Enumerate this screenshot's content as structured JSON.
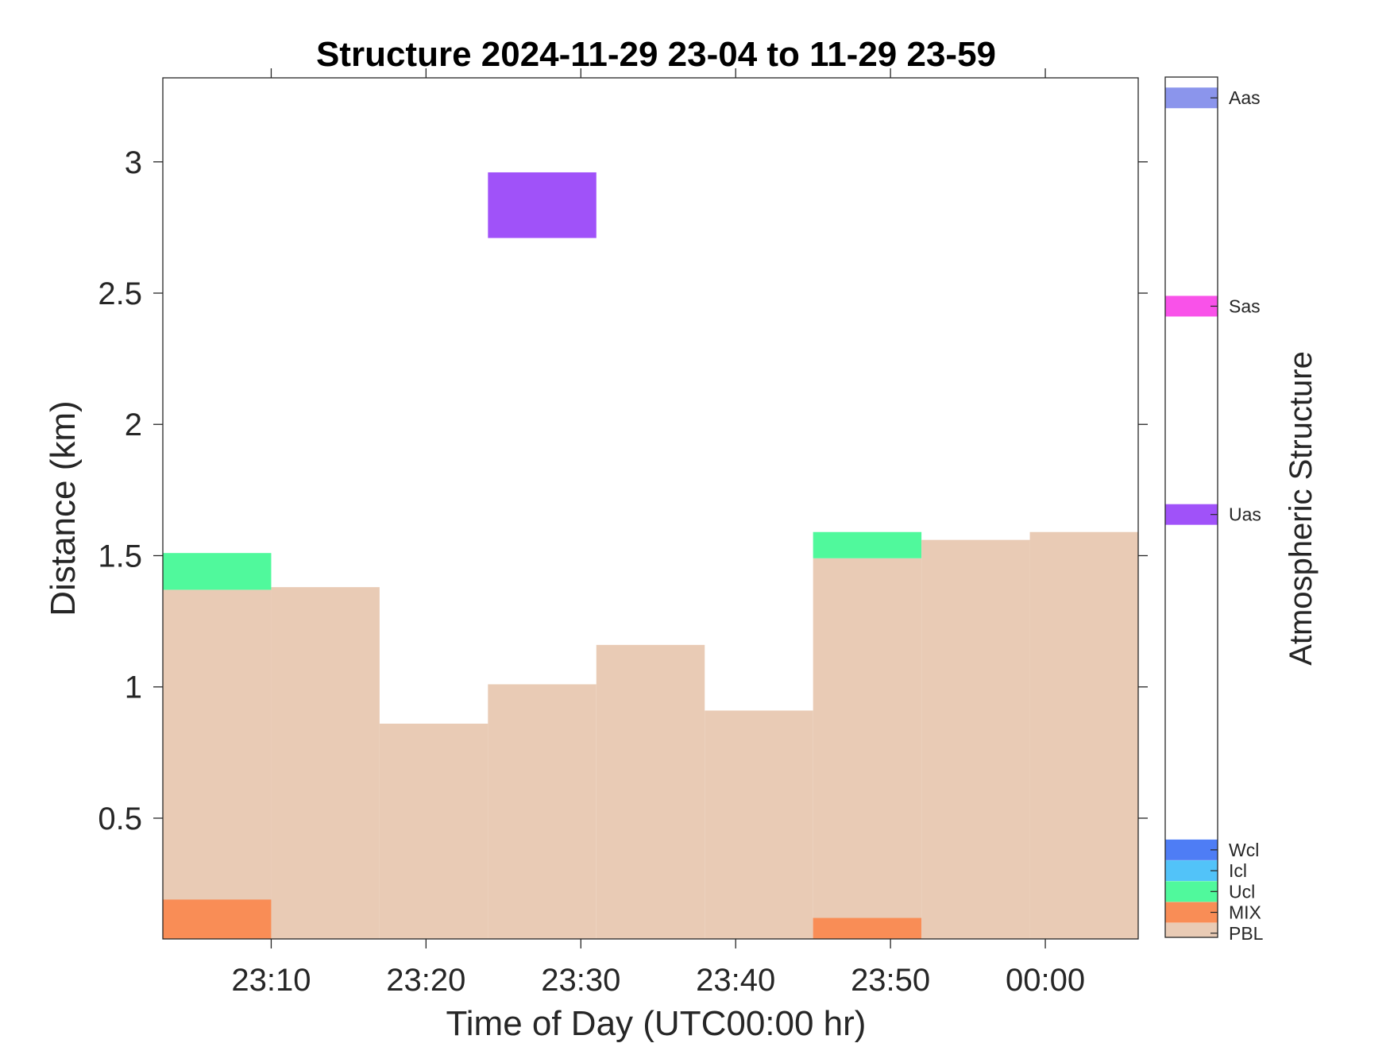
{
  "chart_data": {
    "type": "heatmap",
    "title": "Structure 2024-11-29 23-04 to 11-29 23-59",
    "xlabel": "Time of Day (UTC00:00 hr)",
    "ylabel": "Distance (km)",
    "x_ticks": [
      "23:10",
      "23:20",
      "23:30",
      "23:40",
      "23:50",
      "00:00"
    ],
    "y_ticks": [
      "0.5",
      "1",
      "1.5",
      "2",
      "2.5",
      "3"
    ],
    "xlim_minutes_from_2300": [
      3,
      66
    ],
    "ylim": [
      0.04,
      3.32
    ],
    "colorbar": {
      "label": "Atmospheric Structure",
      "categories": [
        {
          "name": "PBL",
          "color": "#E9CBB5"
        },
        {
          "name": "MIX",
          "color": "#F98D56"
        },
        {
          "name": "Ucl",
          "color": "#50F99C"
        },
        {
          "name": "Icl",
          "color": "#52C3F9"
        },
        {
          "name": "Wcl",
          "color": "#4E7DF5"
        },
        {
          "name": "Uas",
          "color": "#A052F9"
        },
        {
          "name": "Sas",
          "color": "#F952E9"
        },
        {
          "name": "Aas",
          "color": "#8B95EC"
        }
      ]
    },
    "bins_minutes_from_2300": [
      3,
      10,
      17,
      24,
      31,
      38,
      45,
      52,
      59,
      66
    ],
    "cells": [
      {
        "category": "PBL",
        "bin": 0,
        "y0": 0.04,
        "y1": 1.37
      },
      {
        "category": "Ucl",
        "bin": 0,
        "y0": 1.37,
        "y1": 1.51
      },
      {
        "category": "MIX",
        "bin": 0,
        "y0": 0.04,
        "y1": 0.19
      },
      {
        "category": "PBL",
        "bin": 1,
        "y0": 0.04,
        "y1": 1.38
      },
      {
        "category": "PBL",
        "bin": 2,
        "y0": 0.04,
        "y1": 0.86
      },
      {
        "category": "PBL",
        "bin": 3,
        "y0": 0.04,
        "y1": 1.01
      },
      {
        "category": "Uas",
        "bin": 3,
        "y0": 2.71,
        "y1": 2.96
      },
      {
        "category": "PBL",
        "bin": 4,
        "y0": 0.04,
        "y1": 1.16
      },
      {
        "category": "PBL",
        "bin": 5,
        "y0": 0.04,
        "y1": 0.91
      },
      {
        "category": "PBL",
        "bin": 6,
        "y0": 0.04,
        "y1": 1.49
      },
      {
        "category": "Ucl",
        "bin": 6,
        "y0": 1.49,
        "y1": 1.59
      },
      {
        "category": "MIX",
        "bin": 6,
        "y0": 0.04,
        "y1": 0.12
      },
      {
        "category": "PBL",
        "bin": 7,
        "y0": 0.04,
        "y1": 1.56
      },
      {
        "category": "PBL",
        "bin": 8,
        "y0": 0.04,
        "y1": 1.59
      }
    ]
  }
}
